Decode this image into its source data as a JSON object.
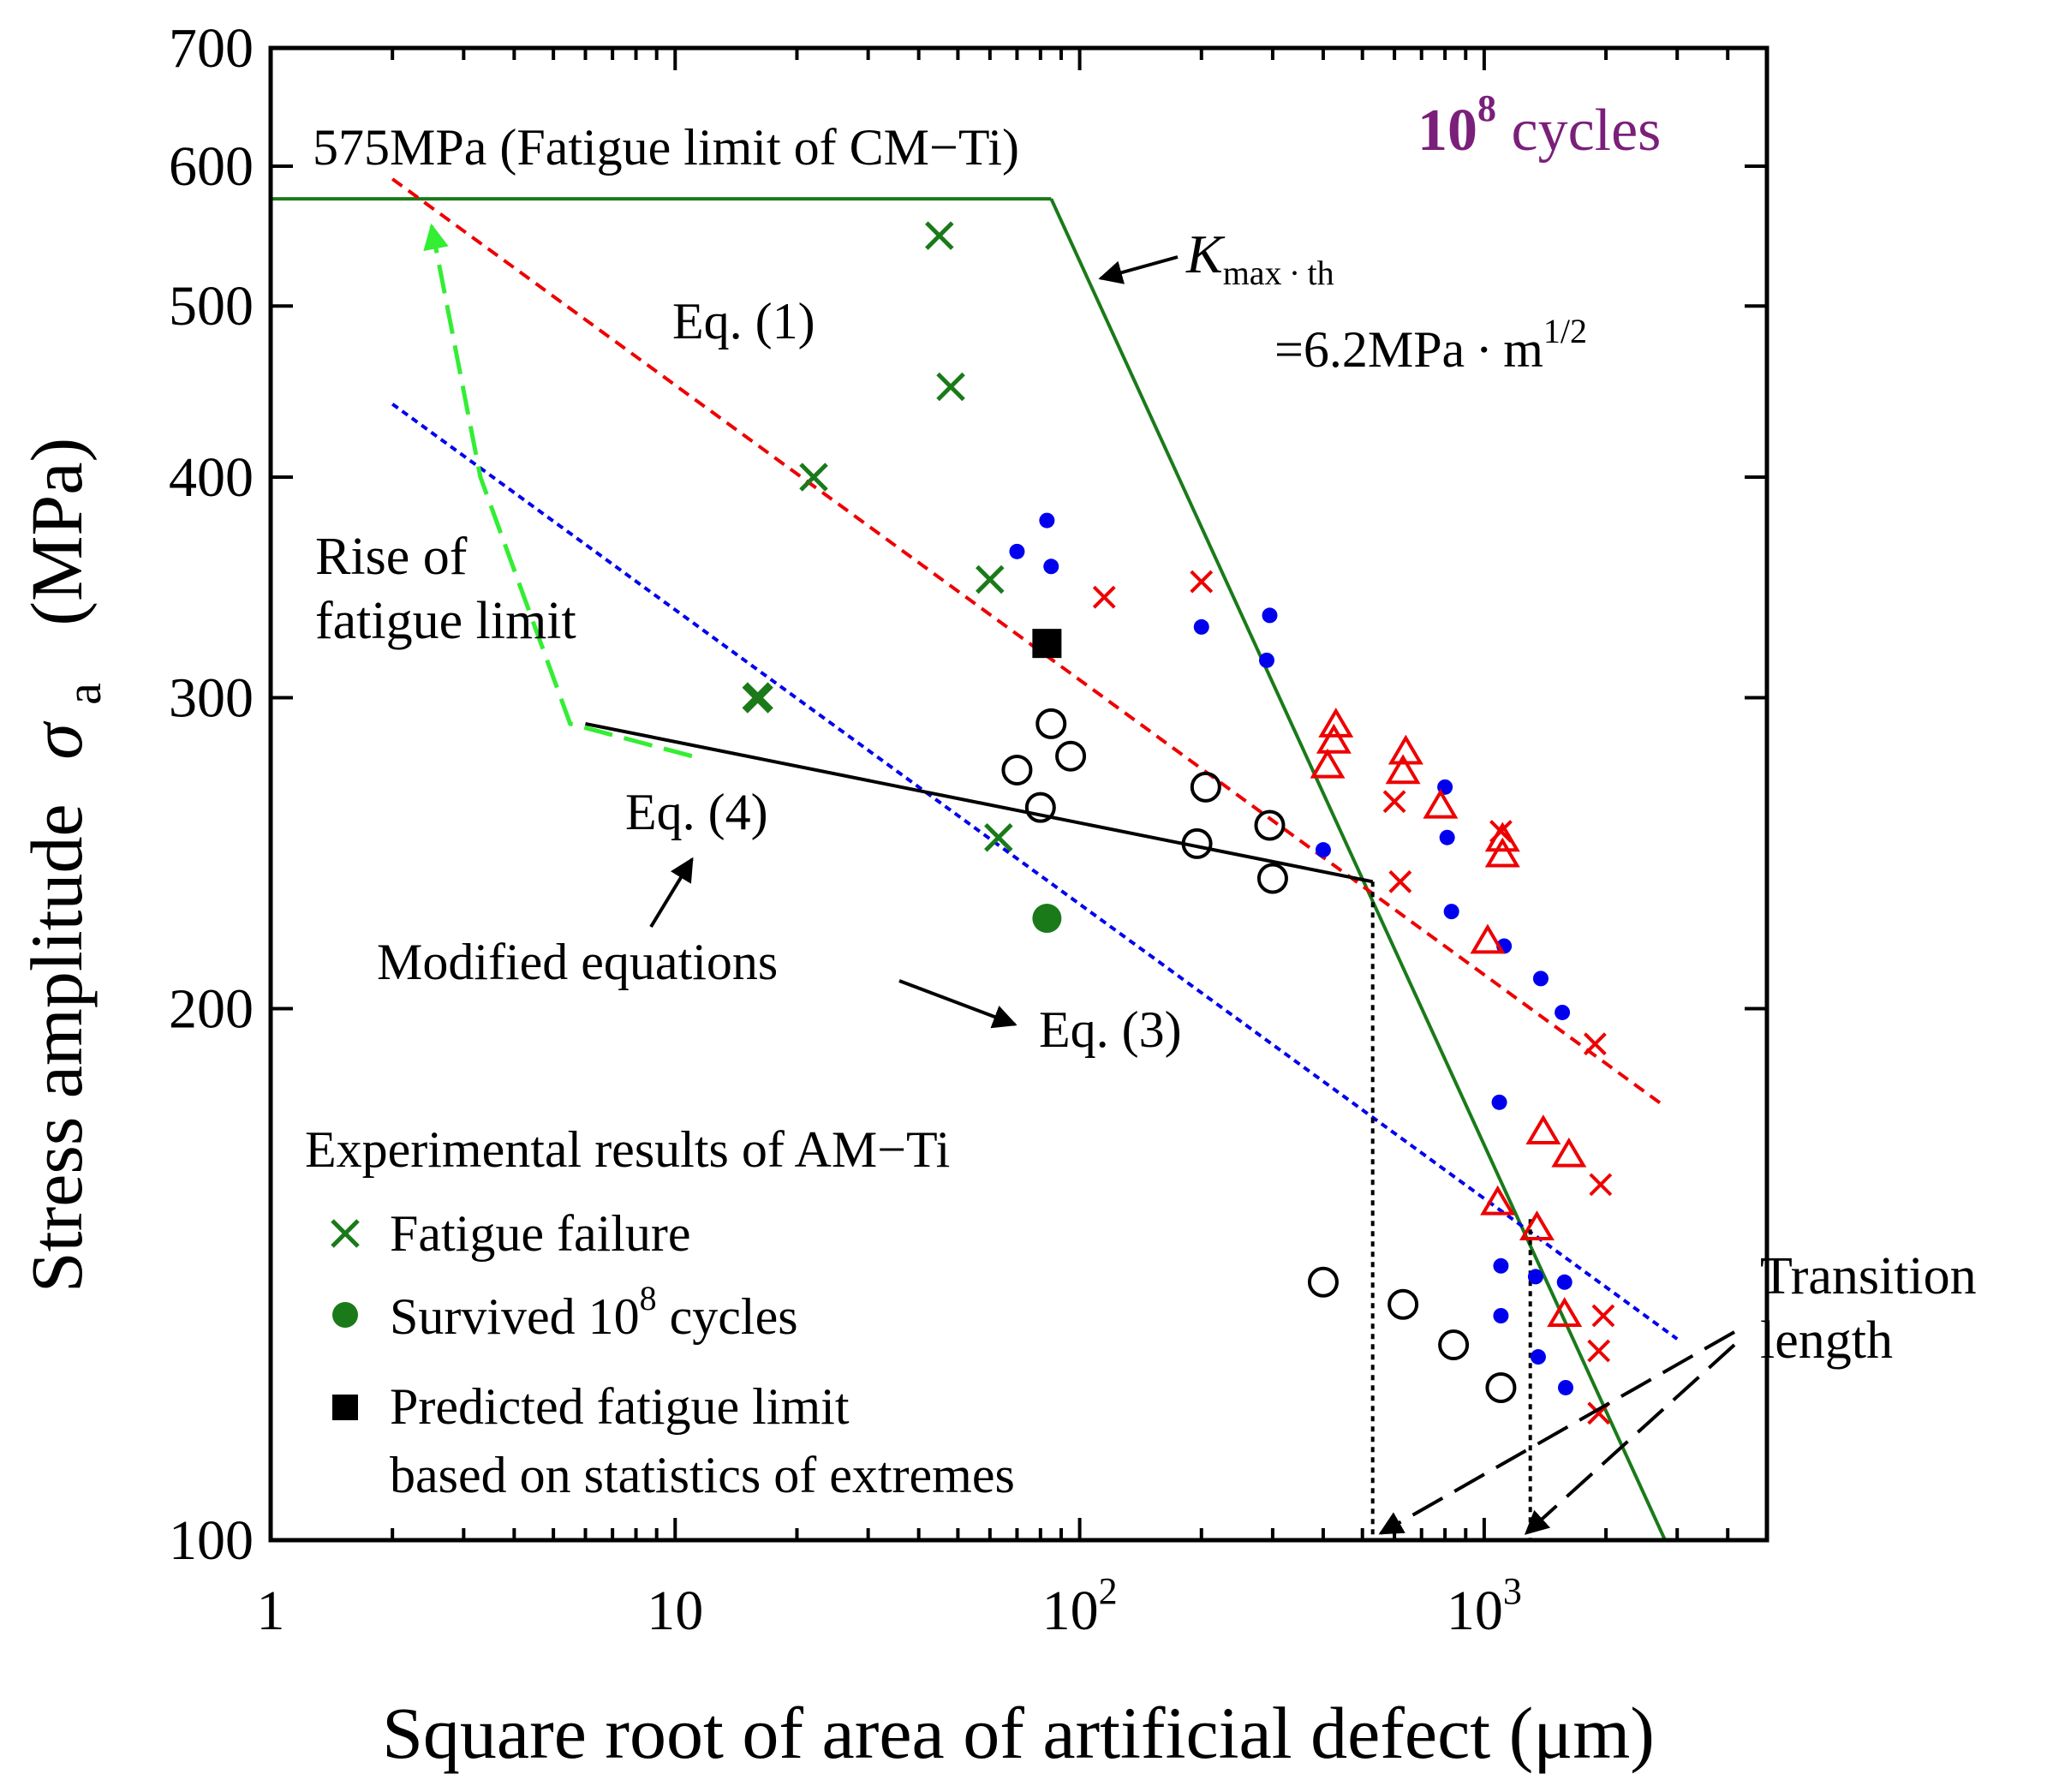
{
  "chart_data": {
    "type": "scatter",
    "xscale": "log",
    "yscale": "log",
    "xlim": [
      1,
      5000
    ],
    "ylim": [
      100,
      700
    ],
    "xlabel": "Square root of area of artificial defect  (μm)",
    "ylabel_text": "Stress amplitude",
    "ylabel_symbol": "σ",
    "ylabel_sub": "a",
    "ylabel_unit": "(MPa)",
    "x_ticks": [
      {
        "v": 1,
        "base": "1",
        "sup": ""
      },
      {
        "v": 10,
        "base": "10",
        "sup": ""
      },
      {
        "v": 100,
        "base": "10",
        "sup": "2"
      },
      {
        "v": 1000,
        "base": "10",
        "sup": "3"
      }
    ],
    "y_ticks": [
      {
        "v": 100,
        "label": "100"
      },
      {
        "v": 200,
        "label": "200"
      },
      {
        "v": 300,
        "label": "300"
      },
      {
        "v": 400,
        "label": "400"
      },
      {
        "v": 500,
        "label": "500"
      },
      {
        "v": 600,
        "label": "600"
      },
      {
        "v": 700,
        "label": "700"
      }
    ],
    "cycles_label": {
      "base": "10",
      "sup": "8",
      "rest": " cycles",
      "color": "#7a1f7a"
    },
    "colors": {
      "green": "#1a7a1a",
      "red": "#ee0000",
      "blue": "#0000ee",
      "lightgreen": "#33ee33",
      "black": "#000000"
    },
    "lines": {
      "cm_ti_limit": {
        "points": [
          [
            1,
            575
          ],
          [
            85,
            575
          ]
        ],
        "color": "#1a7a1a"
      },
      "kmax_th": {
        "points": [
          [
            85,
            575
          ],
          [
            2800,
            100
          ]
        ],
        "color": "#1a7a1a"
      },
      "eq1": {
        "points": [
          [
            2,
            590
          ],
          [
            2800,
            176
          ]
        ],
        "color": "#ee0000",
        "dash": "14 9"
      },
      "eq3": {
        "points": [
          [
            2,
            440
          ],
          [
            3000,
            130
          ]
        ],
        "color": "#0000ee",
        "dash": "8 6"
      },
      "modified_eq4": {
        "points": [
          [
            6,
            290
          ],
          [
            530,
            236
          ]
        ],
        "color": "#000000"
      },
      "transition_1": {
        "points": [
          [
            530,
            236
          ],
          [
            530,
            100
          ]
        ],
        "color": "#000000",
        "dash": "6 6"
      },
      "transition_2": {
        "points": [
          [
            1300,
            152
          ],
          [
            1300,
            100
          ]
        ],
        "color": "#000000",
        "dash": "6 6"
      },
      "rise_of_fatigue_limit": {
        "points": [
          [
            11,
            278
          ],
          [
            5.5,
            290
          ],
          [
            3.3,
            400
          ],
          [
            2.5,
            555
          ]
        ],
        "color": "#33ee33",
        "dash": "34 14"
      }
    },
    "series": [
      {
        "marker": "x",
        "color": "#1a7a1a",
        "size": 15,
        "width": 5,
        "points": [
          [
            45,
            548
          ],
          [
            48,
            450
          ],
          [
            22,
            400
          ],
          [
            60,
            350
          ],
          [
            63,
            250
          ]
        ]
      },
      {
        "marker": "x",
        "color": "#1a7a1a",
        "size": 15,
        "width": 9,
        "points": [
          [
            16,
            300
          ]
        ]
      },
      {
        "marker": "filled_circle",
        "color": "#1a7a1a",
        "size": 17,
        "points": [
          [
            83,
            225
          ]
        ]
      },
      {
        "marker": "filled_square",
        "color": "#000000",
        "size": 17,
        "points": [
          [
            83,
            322
          ]
        ]
      },
      {
        "marker": "open_circle",
        "color": "#000000",
        "size": 16,
        "points": [
          [
            70,
            273
          ],
          [
            80,
            260
          ],
          [
            85,
            290
          ],
          [
            95,
            278
          ],
          [
            195,
            248
          ],
          [
            205,
            267
          ],
          [
            295,
            254
          ],
          [
            300,
            237
          ],
          [
            400,
            140
          ],
          [
            630,
            136
          ],
          [
            840,
            129
          ],
          [
            1100,
            122
          ]
        ]
      },
      {
        "marker": "dot",
        "color": "#0000ee",
        "size": 9,
        "points": [
          [
            70,
            363
          ],
          [
            83,
            378
          ],
          [
            85,
            356
          ],
          [
            200,
            329
          ],
          [
            295,
            334
          ],
          [
            290,
            315
          ],
          [
            400,
            246
          ],
          [
            800,
            267
          ],
          [
            810,
            250
          ],
          [
            830,
            227
          ],
          [
            1120,
            217
          ],
          [
            1380,
            208
          ],
          [
            1560,
            199
          ],
          [
            1090,
            177
          ],
          [
            1100,
            143
          ],
          [
            1340,
            141
          ],
          [
            1580,
            140
          ],
          [
            1100,
            134
          ],
          [
            1360,
            127
          ],
          [
            1590,
            122
          ]
        ]
      },
      {
        "marker": "x",
        "color": "#ee0000",
        "size": 12,
        "width": 4,
        "points": [
          [
            115,
            342
          ],
          [
            200,
            349
          ],
          [
            600,
            262
          ],
          [
            620,
            236
          ],
          [
            1100,
            252
          ],
          [
            1880,
            191
          ],
          [
            1940,
            159
          ],
          [
            1970,
            134
          ],
          [
            1920,
            128
          ],
          [
            1920,
            118
          ]
        ]
      },
      {
        "marker": "triangle",
        "color": "#ee0000",
        "size": 17,
        "points": [
          [
            430,
            289
          ],
          [
            425,
            283
          ],
          [
            410,
            274
          ],
          [
            640,
            279
          ],
          [
            630,
            272
          ],
          [
            780,
            260
          ],
          [
            1110,
            249
          ],
          [
            1110,
            244
          ],
          [
            1020,
            218
          ],
          [
            1400,
            170
          ],
          [
            1620,
            165
          ],
          [
            1080,
            155
          ],
          [
            1350,
            150
          ],
          [
            1580,
            134
          ]
        ]
      }
    ],
    "annotations": {
      "cm_ti": "575MPa (Fatigue limit of CM−Ti)",
      "kmax_K": "K",
      "kmax_sub": "max ∙ th",
      "kmax_eq_base": "=6.2MPa ∙ m",
      "kmax_eq_sup": "1/2",
      "eq1": "Eq. (1)",
      "eq3": "Eq. (3)",
      "eq4": "Eq. (4)",
      "modified": "Modified equations",
      "rise_line1": "Rise of",
      "rise_line2": "fatigue limit",
      "transition_line1": "Transition",
      "transition_line2": "length"
    },
    "legend": {
      "title": "Experimental results of AM−Ti",
      "items": [
        {
          "marker": "x",
          "color": "#1a7a1a",
          "label": "Fatigue failure"
        },
        {
          "marker": "filled_circle",
          "color": "#1a7a1a",
          "label_base": "Survived 10",
          "label_sup": "8",
          "label_rest": " cycles"
        },
        {
          "marker": "filled_square",
          "color": "#000000",
          "label": "Predicted fatigue limit",
          "label2": "based on statistics of extremes"
        }
      ]
    }
  }
}
